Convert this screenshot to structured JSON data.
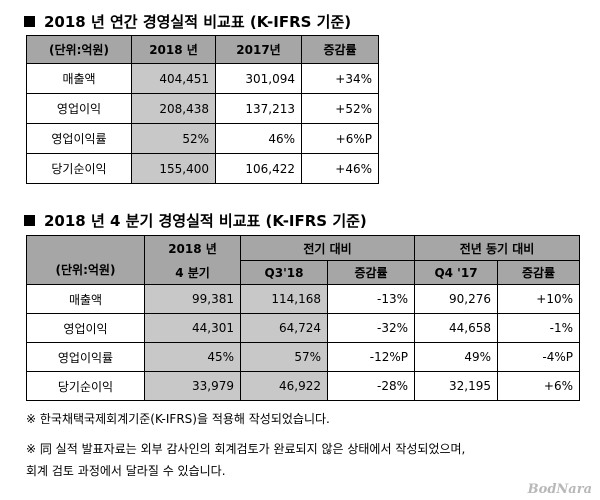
{
  "annual": {
    "title": "2018 년 연간 경영실적 비교표 (K-IFRS 기준)",
    "headers": [
      "(단위:억원)",
      "2018 년",
      "2017년",
      "증감률"
    ],
    "rows": [
      {
        "label": "매출액",
        "y2018": "404,451",
        "y2017": "301,094",
        "chg": "+34%"
      },
      {
        "label": "영업이익",
        "y2018": "208,438",
        "y2017": "137,213",
        "chg": "+52%"
      },
      {
        "label": "영업이익률",
        "y2018": "52%",
        "y2017": "46%",
        "chg": "+6%P"
      },
      {
        "label": "당기순이익",
        "y2018": "155,400",
        "y2017": "106,422",
        "chg": "+46%"
      }
    ]
  },
  "quarterly": {
    "title": "2018 년 4 분기 경영실적 비교표 (K-IFRS 기준)",
    "header": {
      "unit": "(단위:억원)",
      "current_line1": "2018 년",
      "current_line2": "4 분기",
      "prev_q_group": "전기 대비",
      "prev_y_group": "전년 동기 대비",
      "prev_q_col": "Q3'18",
      "prev_y_col": "Q4 '17",
      "chg": "증감률"
    },
    "rows": [
      {
        "label": "매출액",
        "q4_18": "99,381",
        "q3_18": "114,168",
        "qoq": "-13%",
        "q4_17": "90,276",
        "yoy": "+10%"
      },
      {
        "label": "영업이익",
        "q4_18": "44,301",
        "q3_18": "64,724",
        "qoq": "-32%",
        "q4_17": "44,658",
        "yoy": "-1%"
      },
      {
        "label": "영업이익률",
        "q4_18": "45%",
        "q3_18": "57%",
        "qoq": "-12%P",
        "q4_17": "49%",
        "yoy": "-4%P"
      },
      {
        "label": "당기순이익",
        "q4_18": "33,979",
        "q3_18": "46,922",
        "qoq": "-28%",
        "q4_17": "32,195",
        "yoy": "+6%"
      }
    ]
  },
  "notes": [
    "※ 한국채택국제회계기준(K-IFRS)을 적용해 작성되었습니다.",
    "※ 同 실적 발표자료는 외부 감사인의 회계검토가 완료되지 않은 상태에서 작성되었으며,",
    "회계 검토 과정에서 달라질 수 있습니다."
  ],
  "watermark": "BodNara"
}
